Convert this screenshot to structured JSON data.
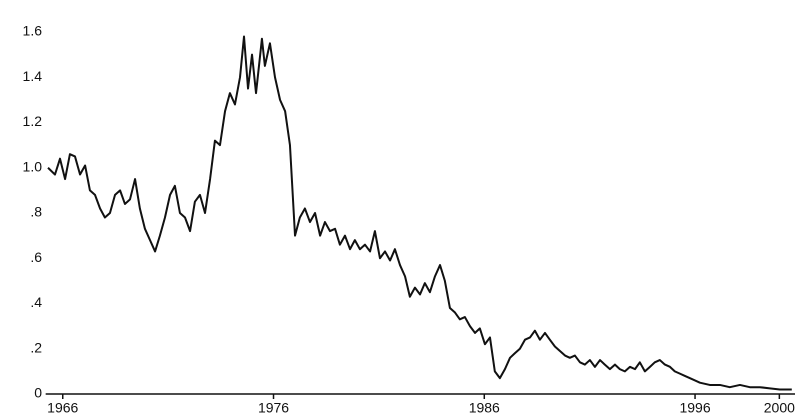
{
  "chart_data": {
    "type": "line",
    "x": [
      1965.3,
      1965.63,
      1965.87,
      1966.11,
      1966.34,
      1966.58,
      1966.82,
      1967.06,
      1967.29,
      1967.53,
      1967.77,
      1968.0,
      1968.24,
      1968.48,
      1968.72,
      1968.95,
      1969.19,
      1969.43,
      1969.66,
      1969.9,
      1970.14,
      1970.38,
      1970.61,
      1970.85,
      1971.09,
      1971.32,
      1971.56,
      1971.8,
      1972.04,
      1972.27,
      1972.51,
      1972.75,
      1972.99,
      1973.22,
      1973.46,
      1973.7,
      1973.93,
      1974.17,
      1974.41,
      1974.6,
      1974.79,
      1974.98,
      1975.17,
      1975.45,
      1975.59,
      1975.83,
      1976.07,
      1976.31,
      1976.55,
      1976.78,
      1977.02,
      1977.25,
      1977.49,
      1977.73,
      1977.97,
      1978.21,
      1978.44,
      1978.68,
      1978.92,
      1979.15,
      1979.39,
      1979.63,
      1979.86,
      1980.1,
      1980.34,
      1980.58,
      1980.81,
      1981.05,
      1981.29,
      1981.53,
      1981.76,
      1982.0,
      1982.24,
      1982.47,
      1982.71,
      1982.95,
      1983.18,
      1983.42,
      1983.66,
      1983.9,
      1984.13,
      1984.37,
      1984.61,
      1984.84,
      1985.08,
      1985.32,
      1985.56,
      1985.79,
      1986.03,
      1986.27,
      1986.5,
      1986.74,
      1986.98,
      1987.22,
      1987.45,
      1987.69,
      1987.93,
      1988.17,
      1988.4,
      1988.64,
      1988.88,
      1989.11,
      1989.35,
      1989.59,
      1989.83,
      1990.06,
      1990.3,
      1990.54,
      1990.77,
      1991.01,
      1991.25,
      1991.49,
      1991.72,
      1991.96,
      1992.2,
      1992.43,
      1992.67,
      1992.91,
      1993.15,
      1993.38,
      1993.62,
      1993.86,
      1994.09,
      1994.33,
      1994.57,
      1994.81,
      1995.04,
      1995.28,
      1995.52,
      1995.76,
      1996.23,
      1996.7,
      1997.18,
      1997.65,
      1998.13,
      1998.6,
      1999.08,
      1999.55,
      2000.02,
      2000.59
    ],
    "series": [
      {
        "color": "#111111",
        "values": [
          1.0,
          0.97,
          1.04,
          0.95,
          1.06,
          1.05,
          0.97,
          1.01,
          0.9,
          0.88,
          0.82,
          0.78,
          0.8,
          0.88,
          0.9,
          0.84,
          0.86,
          0.95,
          0.82,
          0.73,
          0.68,
          0.63,
          0.7,
          0.78,
          0.88,
          0.92,
          0.8,
          0.78,
          0.72,
          0.85,
          0.88,
          0.8,
          0.95,
          1.12,
          1.1,
          1.25,
          1.33,
          1.28,
          1.4,
          1.58,
          1.35,
          1.5,
          1.33,
          1.57,
          1.45,
          1.55,
          1.4,
          1.3,
          1.25,
          1.1,
          0.7,
          0.78,
          0.82,
          0.76,
          0.8,
          0.7,
          0.76,
          0.72,
          0.73,
          0.66,
          0.7,
          0.64,
          0.68,
          0.64,
          0.66,
          0.63,
          0.72,
          0.6,
          0.63,
          0.59,
          0.64,
          0.57,
          0.52,
          0.43,
          0.47,
          0.44,
          0.49,
          0.45,
          0.52,
          0.57,
          0.5,
          0.38,
          0.36,
          0.33,
          0.34,
          0.3,
          0.27,
          0.29,
          0.22,
          0.25,
          0.1,
          0.07,
          0.11,
          0.16,
          0.18,
          0.2,
          0.24,
          0.25,
          0.28,
          0.24,
          0.27,
          0.24,
          0.21,
          0.19,
          0.17,
          0.16,
          0.17,
          0.14,
          0.13,
          0.15,
          0.12,
          0.15,
          0.13,
          0.11,
          0.13,
          0.11,
          0.1,
          0.12,
          0.11,
          0.14,
          0.1,
          0.12,
          0.14,
          0.15,
          0.13,
          0.12,
          0.1,
          0.09,
          0.08,
          0.07,
          0.05,
          0.04,
          0.04,
          0.03,
          0.04,
          0.03,
          0.03,
          0.025,
          0.02,
          0.02
        ]
      }
    ],
    "xlim": [
      1965.3,
      2000.6
    ],
    "xticks": [
      1966,
      1976,
      1986,
      1996,
      2000
    ],
    "ylim": [
      0,
      1.6
    ],
    "yticks": [
      0,
      {
        "value": 0.2,
        "label": ".2"
      },
      {
        "value": 0.4,
        "label": ".4"
      },
      {
        "value": 0.6,
        "label": ".6"
      },
      {
        "value": 0.8,
        "label": ".8"
      },
      {
        "value": 1.0,
        "label": "1.0"
      },
      1.2,
      1.4,
      1.6
    ]
  }
}
